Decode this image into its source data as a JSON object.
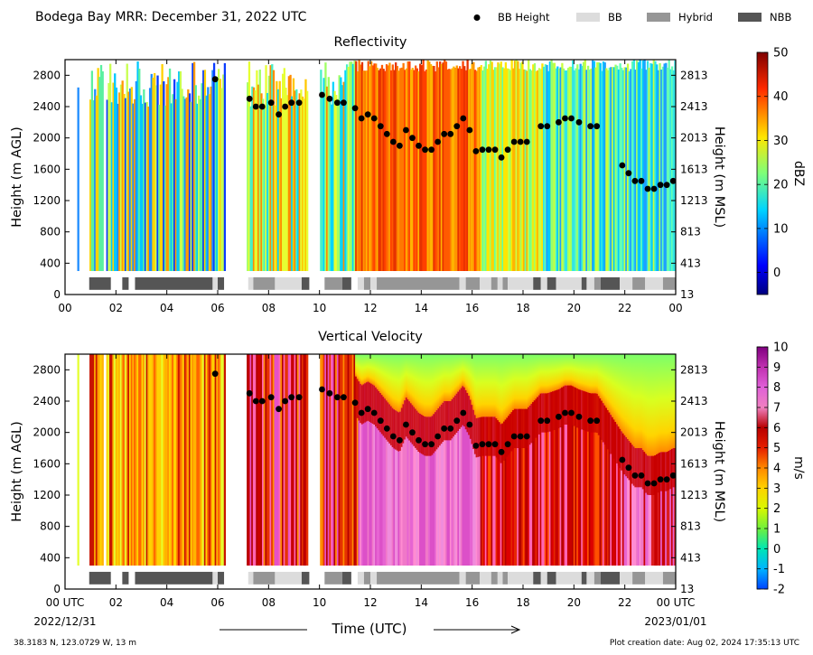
{
  "figure": {
    "title": "Bodega Bay MRR:  December 31, 2022 UTC",
    "legend": [
      {
        "label": "BB Height",
        "kind": "marker",
        "color": "#000000"
      },
      {
        "label": "BB",
        "kind": "patch",
        "color": "#dcdcdc"
      },
      {
        "label": "Hybrid",
        "kind": "patch",
        "color": "#969696"
      },
      {
        "label": "NBB",
        "kind": "patch",
        "color": "#555555"
      }
    ],
    "xlabel": "Time (UTC)",
    "start_date": "2022/12/31",
    "end_date": "2023/01/01",
    "location": "38.3183 N, 123.0729 W, 13 m",
    "creation": "Plot creation date: Aug 02, 2024 17:35:13 UTC"
  },
  "chart_data": [
    {
      "type": "heatmap",
      "title": "Reflectivity",
      "ylabel": "Height (m AGL)",
      "ylabel_right": "Height (m MSL)",
      "x_ticks": [
        "00",
        "02",
        "04",
        "06",
        "08",
        "10",
        "12",
        "14",
        "16",
        "18",
        "20",
        "22",
        "00"
      ],
      "xlim": [
        0,
        24
      ],
      "y_ticks": [
        "0",
        "400",
        "800",
        "1200",
        "1600",
        "2000",
        "2400",
        "2800"
      ],
      "y_ticks_right": [
        "13",
        "413",
        "813",
        "1213",
        "1613",
        "2013",
        "2413",
        "2813"
      ],
      "ylim": [
        0,
        3000
      ],
      "colorbar": {
        "label": "dBZ",
        "ticks": [
          "0",
          "10",
          "20",
          "30",
          "40",
          "50"
        ],
        "range": [
          -5,
          50
        ],
        "colormap": "jet"
      },
      "bb_height": {
        "x": [
          5.9,
          7.25,
          7.5,
          7.75,
          8.1,
          8.4,
          8.65,
          8.9,
          9.2,
          10.1,
          10.4,
          10.7,
          10.95,
          11.4,
          11.65,
          11.9,
          12.15,
          12.4,
          12.65,
          12.9,
          13.15,
          13.4,
          13.65,
          13.9,
          14.15,
          14.4,
          14.65,
          14.9,
          15.15,
          15.4,
          15.65,
          15.9,
          16.15,
          16.4,
          16.65,
          16.9,
          17.15,
          17.4,
          17.65,
          17.9,
          18.15,
          18.7,
          18.95,
          19.4,
          19.65,
          19.9,
          20.2,
          20.65,
          20.9,
          21.9,
          22.15,
          22.4,
          22.65,
          22.9,
          23.15,
          23.4,
          23.65,
          23.9
        ],
        "y": [
          2750,
          2500,
          2400,
          2400,
          2450,
          2300,
          2400,
          2450,
          2450,
          2550,
          2500,
          2450,
          2450,
          2380,
          2250,
          2300,
          2250,
          2150,
          2050,
          1950,
          1900,
          2100,
          2000,
          1900,
          1850,
          1850,
          1950,
          2050,
          2050,
          2150,
          2250,
          2100,
          1830,
          1850,
          1850,
          1850,
          1750,
          1850,
          1950,
          1950,
          1950,
          2150,
          2150,
          2200,
          2250,
          2250,
          2200,
          2150,
          2150,
          1650,
          1550,
          1450,
          1450,
          1350,
          1350,
          1400,
          1400,
          1450
        ]
      },
      "bb_type_segments": [
        {
          "start": 0.95,
          "end": 1.8,
          "type": "NBB"
        },
        {
          "start": 2.25,
          "end": 2.5,
          "type": "NBB"
        },
        {
          "start": 2.75,
          "end": 5.8,
          "type": "NBB"
        },
        {
          "start": 5.8,
          "end": 6.0,
          "type": "BB"
        },
        {
          "start": 6.0,
          "end": 6.25,
          "type": "NBB"
        },
        {
          "start": 7.2,
          "end": 7.4,
          "type": "BB"
        },
        {
          "start": 7.4,
          "end": 8.25,
          "type": "Hybrid"
        },
        {
          "start": 8.25,
          "end": 9.3,
          "type": "BB"
        },
        {
          "start": 9.3,
          "end": 9.6,
          "type": "NBB"
        },
        {
          "start": 10.2,
          "end": 10.9,
          "type": "Hybrid"
        },
        {
          "start": 10.9,
          "end": 11.25,
          "type": "NBB"
        },
        {
          "start": 11.5,
          "end": 11.75,
          "type": "BB"
        },
        {
          "start": 11.75,
          "end": 12.0,
          "type": "Hybrid"
        },
        {
          "start": 12.0,
          "end": 12.25,
          "type": "BB"
        },
        {
          "start": 12.25,
          "end": 15.5,
          "type": "Hybrid"
        },
        {
          "start": 15.5,
          "end": 15.75,
          "type": "BB"
        },
        {
          "start": 15.75,
          "end": 16.3,
          "type": "Hybrid"
        },
        {
          "start": 16.3,
          "end": 16.75,
          "type": "BB"
        },
        {
          "start": 16.75,
          "end": 17.0,
          "type": "Hybrid"
        },
        {
          "start": 17.0,
          "end": 17.2,
          "type": "BB"
        },
        {
          "start": 17.2,
          "end": 17.4,
          "type": "Hybrid"
        },
        {
          "start": 17.4,
          "end": 18.4,
          "type": "BB"
        },
        {
          "start": 18.4,
          "end": 18.7,
          "type": "NBB"
        },
        {
          "start": 18.7,
          "end": 18.95,
          "type": "BB"
        },
        {
          "start": 18.95,
          "end": 19.3,
          "type": "NBB"
        },
        {
          "start": 19.3,
          "end": 20.3,
          "type": "BB"
        },
        {
          "start": 20.3,
          "end": 20.5,
          "type": "NBB"
        },
        {
          "start": 20.5,
          "end": 20.8,
          "type": "BB"
        },
        {
          "start": 20.8,
          "end": 21.05,
          "type": "Hybrid"
        },
        {
          "start": 21.05,
          "end": 21.8,
          "type": "NBB"
        },
        {
          "start": 21.8,
          "end": 22.3,
          "type": "BB"
        },
        {
          "start": 22.3,
          "end": 22.8,
          "type": "Hybrid"
        },
        {
          "start": 22.8,
          "end": 23.5,
          "type": "BB"
        },
        {
          "start": 23.5,
          "end": 24.0,
          "type": "Hybrid"
        }
      ]
    },
    {
      "type": "heatmap",
      "title": "Vertical Velocity",
      "ylabel": "Height (m AGL)",
      "ylabel_right": "Height (m MSL)",
      "x_ticks": [
        "00 UTC",
        "02",
        "04",
        "06",
        "08",
        "10",
        "12",
        "14",
        "16",
        "18",
        "20",
        "22",
        "00 UTC"
      ],
      "xlim": [
        0,
        24
      ],
      "y_ticks": [
        "0",
        "400",
        "800",
        "1200",
        "1600",
        "2000",
        "2400",
        "2800"
      ],
      "y_ticks_right": [
        "13",
        "413",
        "813",
        "1213",
        "1613",
        "2013",
        "2413",
        "2813"
      ],
      "ylim": [
        0,
        3000
      ],
      "colorbar": {
        "label": "m/s",
        "ticks": [
          "-2",
          "-1",
          "0",
          "1",
          "2",
          "3",
          "4",
          "5",
          "6",
          "7",
          "8",
          "9",
          "10"
        ],
        "range": [
          -2,
          10
        ]
      }
    }
  ]
}
